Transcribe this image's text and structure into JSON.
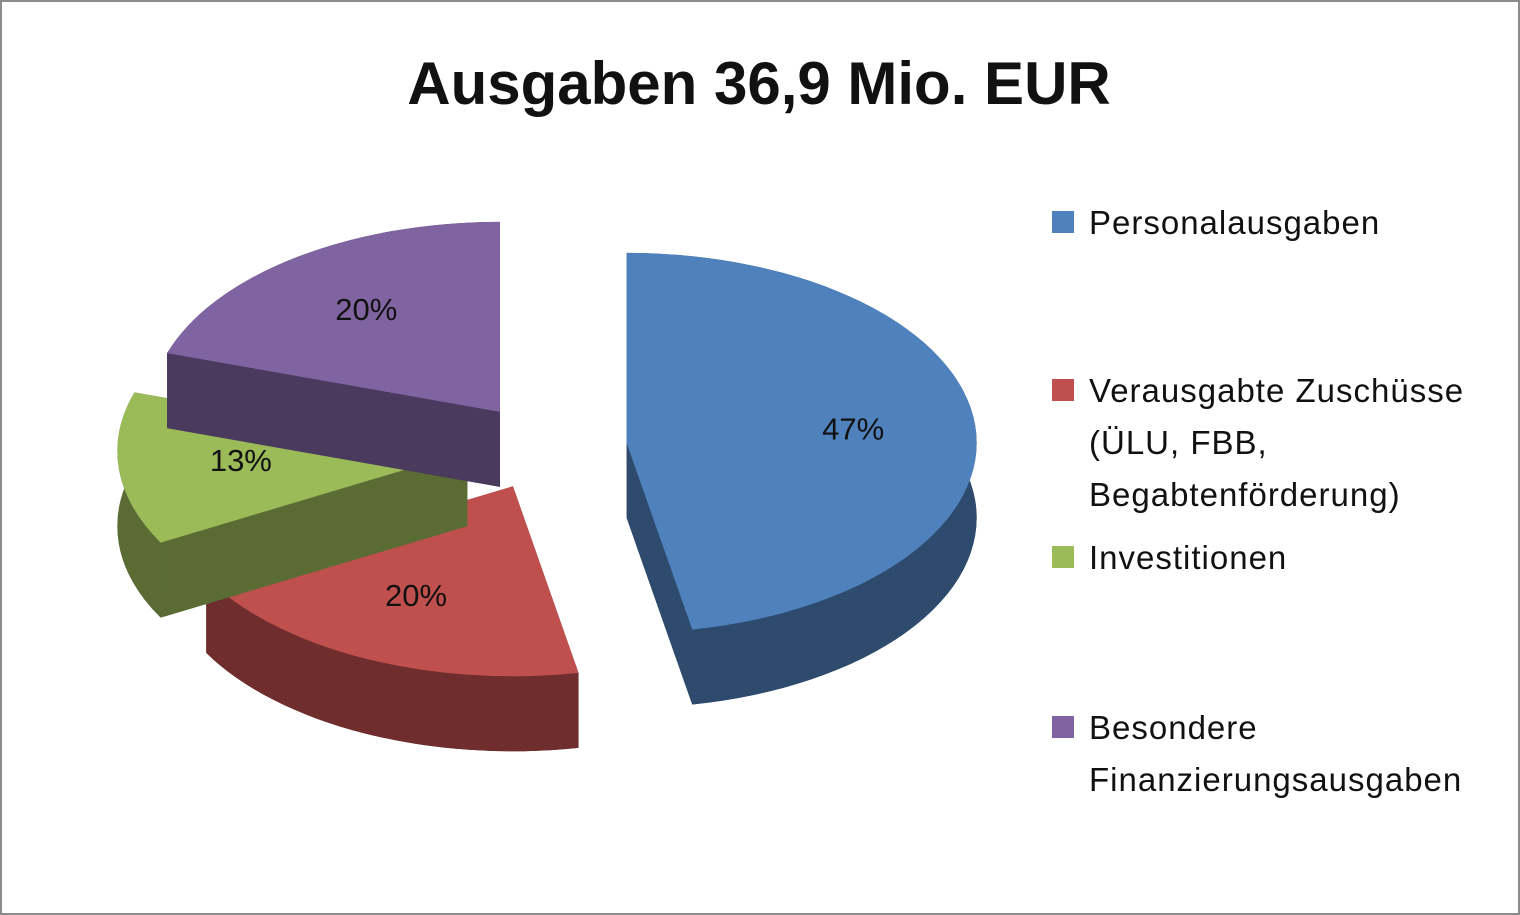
{
  "chart_data": {
    "type": "pie",
    "title": "Ausgaben 36,9 Mio. EUR",
    "categories": [
      "Personalausgaben",
      "Verausgabte Zuschüsse (ÜLU, FBB, Begabtenförderung)",
      "Investitionen",
      "Besondere Finanzierungsausgaben"
    ],
    "values": [
      47,
      20,
      13,
      20
    ],
    "value_labels": [
      "47%",
      "20%",
      "13%",
      "20%"
    ],
    "colors": [
      "#4f81bd",
      "#c0504d",
      "#9bbb59",
      "#8064a2"
    ],
    "legend": "right"
  }
}
